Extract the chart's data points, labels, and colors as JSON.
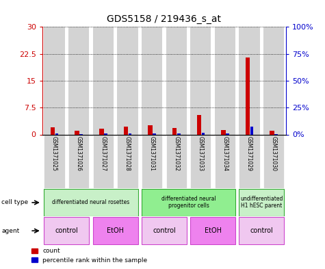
{
  "title": "GDS5158 / 219436_s_at",
  "samples": [
    "GSM1371025",
    "GSM1371026",
    "GSM1371027",
    "GSM1371028",
    "GSM1371031",
    "GSM1371032",
    "GSM1371033",
    "GSM1371034",
    "GSM1371029",
    "GSM1371030"
  ],
  "red_counts": [
    2.0,
    1.1,
    1.6,
    2.1,
    2.6,
    1.8,
    5.5,
    1.3,
    21.5,
    1.1
  ],
  "blue_percentile": [
    1.0,
    0.5,
    0.8,
    0.9,
    1.0,
    0.8,
    1.5,
    0.8,
    7.5,
    0.6
  ],
  "ylim_left": [
    0,
    30
  ],
  "ylim_right": [
    0,
    100
  ],
  "yticks_left": [
    0,
    7.5,
    15,
    22.5,
    30
  ],
  "yticks_right": [
    0,
    25,
    50,
    75,
    100
  ],
  "ytick_labels_left": [
    "0",
    "7.5",
    "15",
    "22.5",
    "30"
  ],
  "ytick_labels_right": [
    "0%",
    "25%",
    "50%",
    "75%",
    "100%"
  ],
  "cell_type_groups": [
    {
      "label": "differentiated neural rosettes",
      "start": 0,
      "end": 4,
      "color": "#c8f0c8"
    },
    {
      "label": "differentiated neural\nprogenitor cells",
      "start": 4,
      "end": 8,
      "color": "#90ee90"
    },
    {
      "label": "undifferentiated\nH1 hESC parent",
      "start": 8,
      "end": 10,
      "color": "#c8f0c8"
    }
  ],
  "agent_groups": [
    {
      "label": "control",
      "start": 0,
      "end": 2,
      "color": "#f0c8f0"
    },
    {
      "label": "EtOH",
      "start": 2,
      "end": 4,
      "color": "#ee82ee"
    },
    {
      "label": "control",
      "start": 4,
      "end": 6,
      "color": "#f0c8f0"
    },
    {
      "label": "EtOH",
      "start": 6,
      "end": 8,
      "color": "#ee82ee"
    },
    {
      "label": "control",
      "start": 8,
      "end": 10,
      "color": "#f0c8f0"
    }
  ],
  "bar_bg_color": "#d3d3d3",
  "red_color": "#cc0000",
  "blue_color": "#0000cc",
  "legend_red_label": "count",
  "legend_blue_label": "percentile rank within the sample"
}
